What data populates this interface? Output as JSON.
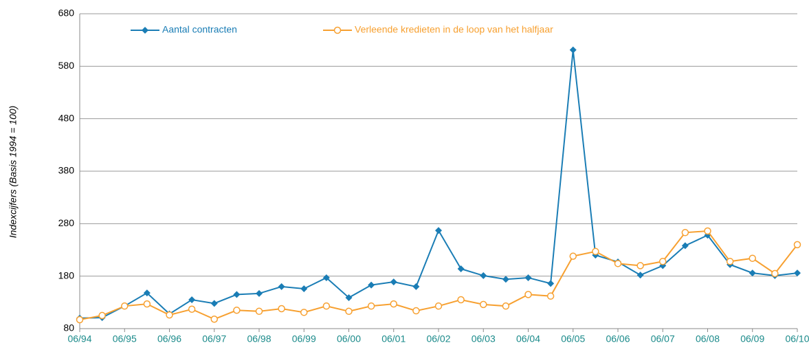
{
  "chart_data": {
    "type": "line",
    "y_label": "Indexcijfers (Basis 1994 = 100)",
    "categories": [
      "06/94",
      null,
      "06/95",
      null,
      "06/96",
      null,
      "06/97",
      null,
      "06/98",
      null,
      "06/99",
      null,
      "06/00",
      null,
      "06/01",
      null,
      "06/02",
      null,
      "06/03",
      null,
      "06/04",
      null,
      "06/05",
      null,
      "06/06",
      null,
      "06/07",
      null,
      "06/08",
      null,
      "06/09",
      null,
      "06/10"
    ],
    "series": [
      {
        "name": "Aantal contracten",
        "color": "#1a7db5",
        "marker": "diamond",
        "values": [
          100,
          101,
          123,
          148,
          108,
          135,
          128,
          145,
          147,
          160,
          156,
          177,
          139,
          163,
          169,
          160,
          267,
          194,
          181,
          174,
          177,
          166,
          611,
          220,
          207,
          182,
          200,
          238,
          258,
          202,
          186,
          181,
          186
        ]
      },
      {
        "name": "Verleende kredieten in de loop van het halfjaar",
        "color": "#f7a030",
        "marker": "circle",
        "values": [
          97,
          105,
          123,
          127,
          106,
          117,
          98,
          115,
          113,
          118,
          111,
          123,
          113,
          123,
          127,
          114,
          123,
          135,
          126,
          123,
          145,
          142,
          218,
          227,
          204,
          200,
          208,
          263,
          266,
          208,
          214,
          185,
          240
        ]
      }
    ],
    "ylim": [
      80,
      680
    ],
    "yticks": [
      80,
      180,
      280,
      380,
      480,
      580,
      680
    ],
    "grid": true
  }
}
